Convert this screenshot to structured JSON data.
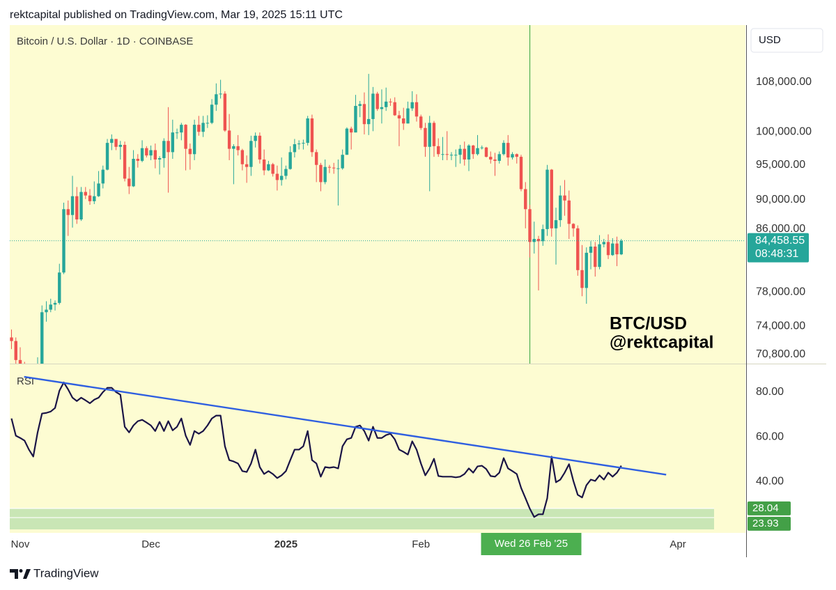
{
  "header": "rektcapital published on TradingView.com, Mar 19, 2025 15:11 UTC",
  "footer": "TradingView",
  "currency_button": "USD",
  "watermark": [
    "BTC/USD",
    "@rektcapital"
  ],
  "chart_data": [
    {
      "type": "candlestick",
      "title": "Bitcoin / U.S. Dollar · 1D · COINBASE",
      "up_color": "#26a69a",
      "down_color": "#ef5350",
      "log_scale": true,
      "ylim": [
        69810,
        118000
      ],
      "xlim": [
        -0.4,
        168.5
      ],
      "yticks": [
        {
          "value": 108000,
          "label": "108,000.00"
        },
        {
          "value": 100000,
          "label": "100,000.00"
        },
        {
          "value": 95000,
          "label": "95,000.00"
        },
        {
          "value": 90000,
          "label": "90,000.00"
        },
        {
          "value": 86000,
          "label": "86,000.00"
        },
        {
          "value": 78000,
          "label": "78,000.00"
        },
        {
          "value": 74000,
          "label": "74,000.00"
        },
        {
          "value": 70800,
          "label": "70,800.00"
        }
      ],
      "open": [
        72700,
        72300,
        70200,
        69500,
        69300,
        68700,
        67800,
        69400,
        75600,
        75900,
        76500,
        76700,
        80400,
        88700,
        87900,
        90500,
        87300,
        91100,
        90600,
        89800,
        90500,
        92300,
        94300,
        98300,
        98900,
        97700,
        98000,
        93000,
        91900,
        95900,
        95600,
        97500,
        96400,
        97200,
        95800,
        96000,
        98600,
        96900,
        99900,
        99900,
        101100,
        97400,
        96600,
        101100,
        100000,
        101400,
        101400,
        104300,
        106000,
        106100,
        100200,
        97400,
        97800,
        97200,
        95100,
        94700,
        98600,
        99400,
        95800,
        94200,
        95100,
        93700,
        92800,
        93400,
        94400,
        96900,
        98100,
        98200,
        98300,
        102100,
        96900,
        95000,
        92500,
        94700,
        94600,
        94500,
        94500,
        96500,
        100500,
        99900,
        104100,
        104400,
        101200,
        102000,
        106100,
        103600,
        103900,
        104800,
        104700,
        102600,
        102100,
        101300,
        103700,
        104700,
        102400,
        100600,
        97700,
        101400,
        97800,
        96600,
        96600,
        96500,
        96500,
        96500,
        97400,
        95800,
        97900,
        96600,
        97500,
        97600,
        96200,
        95800,
        95600,
        96600,
        98300,
        96100,
        96600,
        96200,
        91500,
        88700,
        84300,
        84700,
        84400,
        86000,
        94300,
        86100,
        87200,
        90600,
        89900,
        86700,
        86100,
        80700,
        78500,
        82900,
        83700,
        81100,
        84000,
        84300,
        82600,
        84100,
        82700
      ],
      "high": [
        73600,
        72700,
        71600,
        70000,
        69500,
        69000,
        70500,
        76400,
        76900,
        77200,
        77000,
        81500,
        89600,
        89900,
        93400,
        91800,
        91800,
        91800,
        91500,
        92600,
        94100,
        94900,
        98900,
        99600,
        98800,
        98600,
        98500,
        94700,
        97200,
        96600,
        98700,
        97800,
        97900,
        98200,
        96300,
        99000,
        103900,
        101900,
        100500,
        101400,
        101200,
        98200,
        101900,
        102500,
        102500,
        102600,
        105200,
        107800,
        108400,
        106500,
        102800,
        98100,
        99500,
        97400,
        96400,
        99400,
        99900,
        99900,
        97300,
        95600,
        95300,
        94900,
        96100,
        94900,
        97800,
        98900,
        98700,
        98800,
        102500,
        102700,
        97300,
        95300,
        95800,
        95000,
        95300,
        95800,
        97300,
        100700,
        100800,
        105900,
        104900,
        106300,
        109400,
        107200,
        106400,
        106800,
        107100,
        105300,
        105500,
        103300,
        103800,
        104800,
        106500,
        106000,
        102700,
        101400,
        102500,
        101700,
        99000,
        99200,
        100100,
        96900,
        97300,
        98000,
        98500,
        98100,
        98000,
        99500,
        97900,
        97700,
        97000,
        96800,
        97000,
        98700,
        99500,
        96900,
        96700,
        96500,
        92500,
        89300,
        87000,
        85100,
        86600,
        95000,
        94400,
        88900,
        92000,
        92800,
        91300,
        86800,
        86500,
        83900,
        83600,
        84400,
        84300,
        85200,
        84700,
        85300,
        84800,
        85000,
        84700
      ],
      "low": [
        71400,
        69700,
        68800,
        68900,
        66800,
        66800,
        66900,
        69300,
        74500,
        75600,
        75800,
        76500,
        80200,
        85100,
        86200,
        86700,
        87100,
        90100,
        89300,
        89400,
        90400,
        91600,
        94200,
        97200,
        97200,
        95800,
        92600,
        90800,
        91800,
        94600,
        95400,
        96100,
        95700,
        94500,
        93600,
        94600,
        91000,
        95900,
        98900,
        98700,
        94200,
        94300,
        95700,
        99400,
        99200,
        100600,
        101200,
        103300,
        105300,
        100000,
        95700,
        92200,
        96400,
        94200,
        92400,
        93400,
        97600,
        95200,
        93500,
        94100,
        93300,
        91300,
        92000,
        92900,
        94300,
        96100,
        97300,
        97300,
        97900,
        96200,
        92500,
        91200,
        92200,
        93800,
        93700,
        89200,
        94300,
        96500,
        97300,
        99900,
        102300,
        99600,
        99500,
        100100,
        103300,
        101300,
        103300,
        104100,
        102500,
        97800,
        100300,
        101300,
        103300,
        101600,
        100300,
        96200,
        91200,
        96200,
        96200,
        95700,
        95700,
        95700,
        94700,
        95200,
        94900,
        94100,
        95900,
        96400,
        97300,
        96100,
        95200,
        93400,
        95200,
        96400,
        94900,
        95800,
        95200,
        91200,
        86100,
        82300,
        82800,
        78200,
        83800,
        85100,
        85000,
        81400,
        86300,
        87800,
        84700,
        85000,
        80000,
        77500,
        76600,
        80800,
        79900,
        80800,
        83600,
        82100,
        82500,
        81200,
        82600
      ],
      "close": [
        72300,
        70200,
        69500,
        69300,
        68700,
        67800,
        69400,
        75600,
        75900,
        76500,
        76700,
        80400,
        88700,
        87900,
        90500,
        87300,
        91100,
        90600,
        89800,
        90500,
        92300,
        94300,
        98300,
        98900,
        97700,
        98000,
        93000,
        91900,
        95900,
        95600,
        97500,
        96400,
        97200,
        95800,
        96000,
        98600,
        96900,
        99900,
        99900,
        101100,
        97400,
        96600,
        101100,
        100000,
        101400,
        101400,
        104300,
        106000,
        106100,
        100200,
        97400,
        97800,
        97200,
        95100,
        94700,
        98600,
        99400,
        95800,
        94200,
        95100,
        93700,
        92800,
        93400,
        94400,
        96900,
        98100,
        98200,
        98300,
        102100,
        96900,
        95000,
        92500,
        94700,
        94600,
        94500,
        94500,
        96500,
        100500,
        99900,
        104100,
        104400,
        101200,
        102000,
        106100,
        103600,
        103900,
        104800,
        104700,
        102600,
        102100,
        101300,
        103700,
        104700,
        102400,
        100600,
        97700,
        101400,
        97800,
        96600,
        96600,
        96500,
        96500,
        96500,
        97400,
        95800,
        97900,
        96600,
        97500,
        97600,
        96200,
        95800,
        95600,
        96600,
        98300,
        96100,
        96600,
        96200,
        91500,
        88700,
        84300,
        84700,
        84400,
        86000,
        94300,
        86100,
        87200,
        90600,
        89900,
        86700,
        86100,
        80700,
        78500,
        82900,
        83700,
        81100,
        84000,
        84300,
        82600,
        84100,
        82700,
        84458.55
      ],
      "last_price": {
        "value": 84458.55,
        "label": "84,458.55"
      },
      "countdown": "08:48:31",
      "crosshair": {
        "x": 119,
        "label": "Wed 26 Feb '25",
        "color": "#4caf50"
      }
    },
    {
      "type": "line",
      "title": "RSI",
      "color": "#1a1446",
      "ylim": [
        17.1,
        92.4
      ],
      "xlim": [
        -0.4,
        168.5
      ],
      "yticks": [
        {
          "value": 80,
          "label": "80.00"
        },
        {
          "value": 60,
          "label": "60.00"
        },
        {
          "value": 40,
          "label": "40.00"
        }
      ],
      "xticks": [
        {
          "value": 2,
          "label": "Nov"
        },
        {
          "value": 32,
          "label": "Dec"
        },
        {
          "value": 63,
          "label": "2025"
        },
        {
          "value": 94,
          "label": "Feb"
        },
        {
          "value": 153,
          "label": "Apr"
        }
      ],
      "values": [
        68.2,
        60.5,
        59.5,
        58.3,
        54.3,
        51.2,
        62,
        70.4,
        70.7,
        71.3,
        72.9,
        80.6,
        84.3,
        81.2,
        77.5,
        76,
        77.5,
        76.3,
        75,
        76.6,
        77.5,
        80,
        81.9,
        81.9,
        80,
        78.8,
        64.5,
        62,
        65.1,
        67,
        67.6,
        66.4,
        65.1,
        62.6,
        66.7,
        62.6,
        67,
        62.9,
        64.5,
        68.2,
        60.5,
        56.4,
        62.6,
        61.4,
        62.6,
        65.1,
        68.2,
        69.5,
        69.5,
        55.8,
        49.6,
        49,
        48.1,
        44.7,
        44.3,
        48.1,
        54.3,
        46.5,
        43.4,
        44.7,
        43.4,
        41.6,
        42.8,
        44.7,
        49.6,
        54.3,
        54.3,
        55.8,
        62.6,
        49.6,
        48.1,
        42.2,
        46.5,
        46.2,
        46.5,
        45.9,
        55.8,
        58.9,
        59.5,
        64.5,
        65.1,
        62.6,
        58.3,
        64.5,
        59.5,
        59.5,
        60.8,
        61.4,
        58.9,
        54.3,
        53.3,
        52.1,
        58,
        54.3,
        48.1,
        42.8,
        45.9,
        50.2,
        42.5,
        42.2,
        42.2,
        42.2,
        41.9,
        42.2,
        43.4,
        45.9,
        44,
        46.8,
        47.1,
        45.6,
        42.5,
        42.2,
        44,
        50.5,
        45.9,
        44.7,
        43.4,
        37.2,
        32.6,
        27.9,
        24.2,
        25.4,
        25.4,
        32.6,
        51.2,
        39.7,
        40.9,
        44,
        47.8,
        40.3,
        34.1,
        32.9,
        38.4,
        40.9,
        40.3,
        42.8,
        40.9,
        44,
        42.2,
        44,
        47.1
      ],
      "trendline": {
        "x": [
          2.9,
          150.3
        ],
        "y": [
          86.8,
          43.1
        ],
        "color": "#2f5fe0"
      },
      "hlines": [
        {
          "value": 28.04,
          "label": "28.04"
        },
        {
          "value": 23.93,
          "label": "23.93"
        }
      ],
      "zone_color": "#c9e6b5",
      "label_color": "#43a047"
    }
  ]
}
